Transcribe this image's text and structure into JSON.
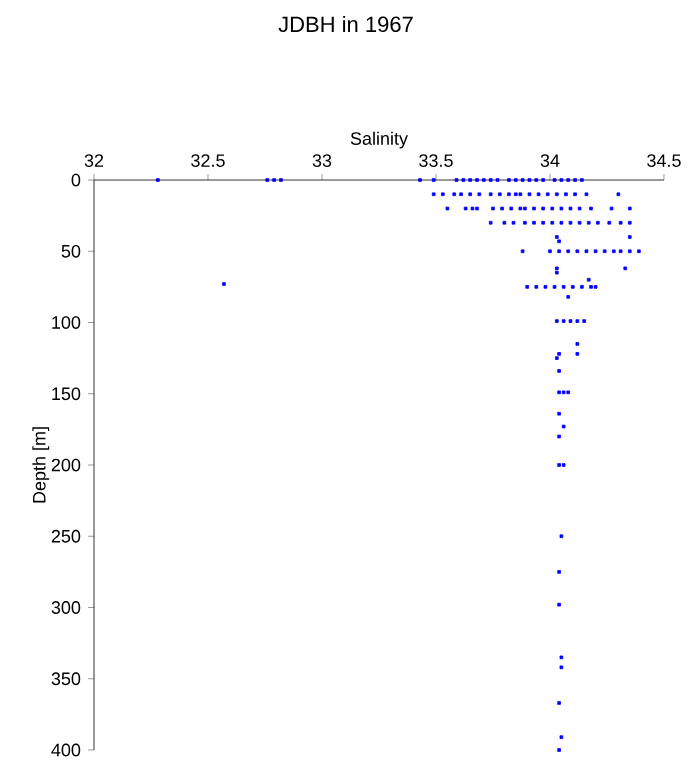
{
  "chart_data": {
    "type": "scatter",
    "title": "JDBH in 1967",
    "xlabel": "Salinity",
    "ylabel": "Depth [m]",
    "xlim": [
      32,
      34.5
    ],
    "ylim": [
      400,
      0
    ],
    "xticks": [
      32,
      32.5,
      33,
      33.5,
      34,
      34.5
    ],
    "yticks": [
      0,
      50,
      100,
      150,
      200,
      250,
      300,
      350,
      400
    ],
    "marker": "square",
    "grid": false,
    "series": [
      {
        "color": "#0000ff",
        "x": [
          32.28,
          32.76,
          32.79,
          32.82,
          33.43,
          33.49,
          33.59,
          33.62,
          33.65,
          33.68,
          33.71,
          33.74,
          33.77,
          33.82,
          33.85,
          33.88,
          33.91,
          33.94,
          33.97,
          34.02,
          34.05,
          34.08,
          34.11,
          34.14,
          33.49,
          33.53,
          33.58,
          33.61,
          33.65,
          33.69,
          33.74,
          33.78,
          33.82,
          33.85,
          33.87,
          33.91,
          33.95,
          33.99,
          34.03,
          34.07,
          34.11,
          34.16,
          34.3,
          33.55,
          33.63,
          33.66,
          33.68,
          33.75,
          33.79,
          33.83,
          33.87,
          33.89,
          33.93,
          33.97,
          34.01,
          34.05,
          34.09,
          34.13,
          34.18,
          34.27,
          34.35,
          33.74,
          33.8,
          33.84,
          33.89,
          33.93,
          33.97,
          34.01,
          34.05,
          34.09,
          34.13,
          34.17,
          34.21,
          34.26,
          34.31,
          34.35,
          34.03,
          34.35,
          34.04,
          33.88,
          34.0,
          34.04,
          34.08,
          34.12,
          34.16,
          34.2,
          34.24,
          34.28,
          34.31,
          34.35,
          34.39,
          34.03,
          34.33,
          34.03,
          34.17,
          32.57,
          33.9,
          33.94,
          33.98,
          34.02,
          34.06,
          34.1,
          34.14,
          34.18,
          34.2,
          34.08,
          34.03,
          34.06,
          34.09,
          34.12,
          34.15,
          34.12,
          34.04,
          34.12,
          34.03,
          34.04,
          34.04,
          34.06,
          34.08,
          34.04,
          34.06,
          34.04,
          34.04,
          34.06,
          34.05,
          34.04,
          34.04,
          34.05,
          34.05,
          34.04,
          34.05,
          34.04
        ],
        "values": [
          0,
          0,
          0,
          0,
          0,
          0,
          0,
          0,
          0,
          0,
          0,
          0,
          0,
          0,
          0,
          0,
          0,
          0,
          0,
          0,
          0,
          0,
          0,
          0,
          10,
          10,
          10,
          10,
          10,
          10,
          10,
          10,
          10,
          10,
          10,
          10,
          10,
          10,
          10,
          10,
          10,
          10,
          10,
          20,
          20,
          20,
          20,
          20,
          20,
          20,
          20,
          20,
          20,
          20,
          20,
          20,
          20,
          20,
          20,
          20,
          20,
          30,
          30,
          30,
          30,
          30,
          30,
          30,
          30,
          30,
          30,
          30,
          30,
          30,
          30,
          30,
          40,
          40,
          43,
          50,
          50,
          50,
          50,
          50,
          50,
          50,
          50,
          50,
          50,
          50,
          50,
          62,
          62,
          65,
          70,
          73,
          75,
          75,
          75,
          75,
          75,
          75,
          75,
          75,
          75,
          82,
          99,
          99,
          99,
          99,
          99,
          115,
          122,
          122,
          125,
          134,
          149,
          149,
          149,
          164,
          173,
          180,
          200,
          200,
          250,
          275,
          298,
          335,
          342,
          367,
          391,
          400
        ]
      }
    ]
  }
}
